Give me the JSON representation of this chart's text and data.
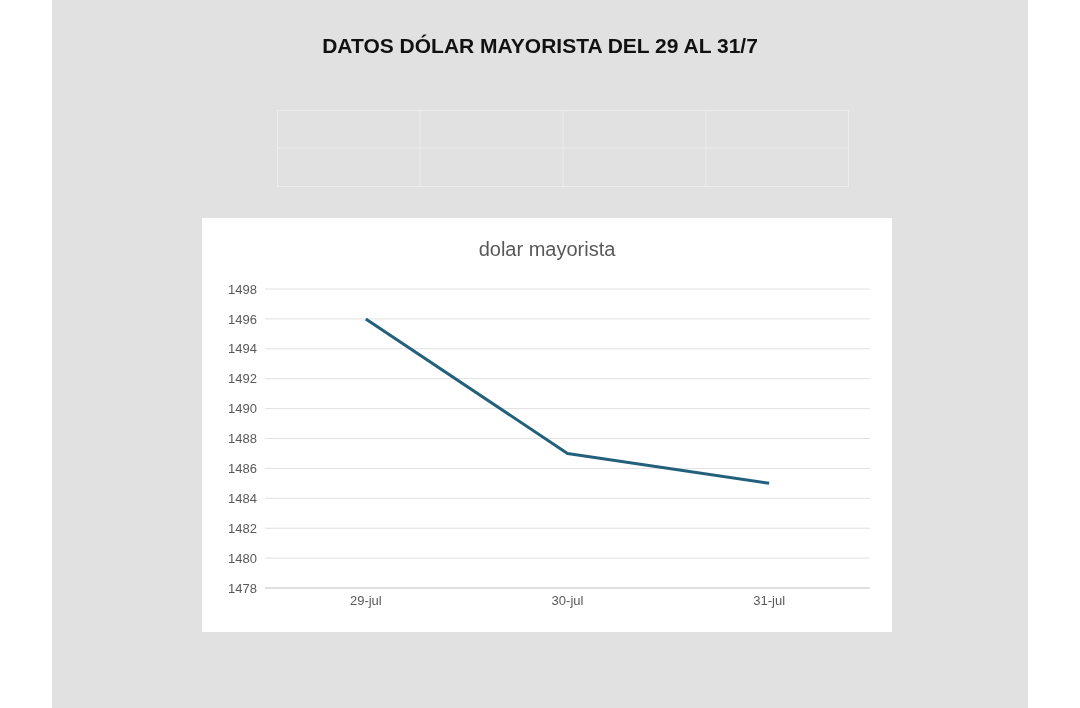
{
  "chart_data": {
    "type": "line",
    "title": "DATOS DÓLAR MAYORISTA DEL 29 AL 31/7",
    "subtitle": "dolar mayorista",
    "categories": [
      "29-jul",
      "30-jul",
      "31-jul"
    ],
    "series": [
      {
        "color": "#23607c",
        "values": [
          1496,
          1487,
          1485
        ]
      }
    ],
    "ylim": [
      1478,
      1498
    ],
    "yticks": [
      1478,
      1480,
      1482,
      1484,
      1486,
      1488,
      1490,
      1492,
      1494,
      1496,
      1498
    ],
    "grid": "y",
    "legend": false,
    "marker": "none",
    "line_style": "solid"
  }
}
